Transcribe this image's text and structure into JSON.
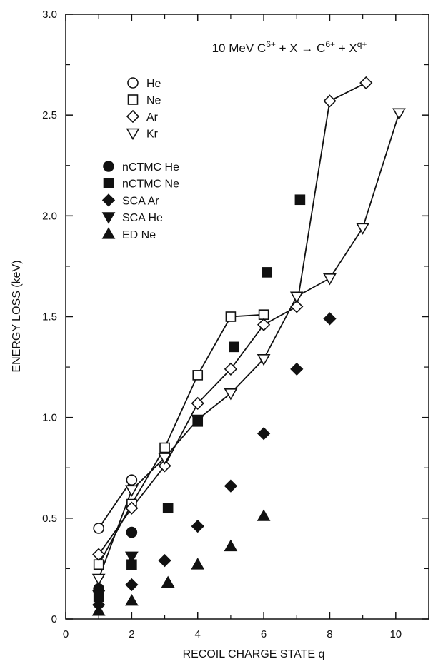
{
  "chart_data": {
    "type": "scatter",
    "title": "10 MeV C⁶⁺ + X → C⁶⁺ + Xᑫ⁺",
    "xlabel": "RECOIL CHARGE STATE q",
    "ylabel": "ENERGY LOSS (keV)",
    "xlim": [
      0,
      11
    ],
    "ylim": [
      0,
      3.0
    ],
    "x_ticks": [
      0,
      2,
      4,
      6,
      8,
      10
    ],
    "y_ticks": [
      0,
      0.5,
      1.0,
      1.5,
      2.0,
      2.5,
      3.0
    ],
    "x_tick_labels": [
      "0",
      "2",
      "4",
      "6",
      "8",
      "10"
    ],
    "y_tick_labels": [
      "0",
      "0.5",
      "1.0",
      "1.5",
      "2.0",
      "2.5",
      "3.0"
    ],
    "grid": false,
    "legend_position": "top-left",
    "series": [
      {
        "name": "He",
        "marker": "circle",
        "filled": false,
        "connected": true,
        "x": [
          1,
          2
        ],
        "y": [
          0.45,
          0.69
        ]
      },
      {
        "name": "Ne",
        "marker": "square",
        "filled": false,
        "connected": true,
        "x": [
          1,
          2,
          3,
          4,
          5,
          6
        ],
        "y": [
          0.27,
          0.57,
          0.85,
          1.21,
          1.5,
          1.51
        ]
      },
      {
        "name": "Ar",
        "marker": "diamond",
        "filled": false,
        "connected": true,
        "x": [
          1,
          2,
          3,
          4,
          5,
          6,
          7,
          8,
          9.1
        ],
        "y": [
          0.32,
          0.55,
          0.76,
          1.07,
          1.24,
          1.46,
          1.55,
          2.57,
          2.66
        ]
      },
      {
        "name": "Kr",
        "marker": "triangle-down",
        "filled": false,
        "connected": true,
        "x": [
          1,
          2,
          3,
          4,
          5,
          6,
          7,
          8,
          9,
          10.1
        ],
        "y": [
          0.2,
          0.64,
          0.8,
          0.99,
          1.12,
          1.29,
          1.6,
          1.69,
          1.94,
          2.51
        ]
      },
      {
        "name": "nCTMC He",
        "marker": "circle",
        "filled": true,
        "connected": false,
        "x": [
          1,
          2
        ],
        "y": [
          0.15,
          0.43
        ]
      },
      {
        "name": "nCTMC Ne",
        "marker": "square",
        "filled": true,
        "connected": false,
        "x": [
          1,
          2,
          3.1,
          4,
          5.1,
          6.1,
          7.1
        ],
        "y": [
          0.11,
          0.27,
          0.55,
          0.98,
          1.35,
          1.72,
          2.08
        ]
      },
      {
        "name": "SCA Ar",
        "marker": "diamond",
        "filled": true,
        "connected": false,
        "x": [
          1,
          2,
          3,
          4,
          5,
          6,
          7,
          8
        ],
        "y": [
          0.07,
          0.17,
          0.29,
          0.46,
          0.66,
          0.92,
          1.24,
          1.49
        ]
      },
      {
        "name": "SCA He",
        "marker": "triangle-down",
        "filled": true,
        "connected": false,
        "x": [
          1,
          2
        ],
        "y": [
          0.12,
          0.31
        ]
      },
      {
        "name": "ED Ne",
        "marker": "triangle-up",
        "filled": true,
        "connected": false,
        "x": [
          1,
          2,
          3.1,
          4,
          5,
          6
        ],
        "y": [
          0.04,
          0.09,
          0.18,
          0.27,
          0.36,
          0.51
        ]
      }
    ]
  }
}
